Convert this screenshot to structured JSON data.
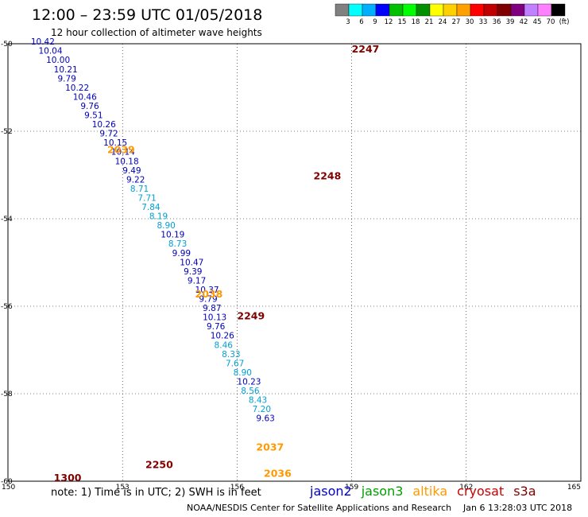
{
  "header": {
    "title": "12:00  –  23:59 UTC 01/05/2018",
    "subtitle": "12 hour collection of altimeter wave heights"
  },
  "legend": {
    "colors": [
      "#808080",
      "#00ffff",
      "#00b0ff",
      "#0000ff",
      "#00c000",
      "#00ff00",
      "#009000",
      "#ffff00",
      "#ffd000",
      "#ffa000",
      "#ff0000",
      "#c00000",
      "#800000",
      "#800080",
      "#c080ff",
      "#ff80ff",
      "#000000"
    ],
    "labels": [
      "3",
      "6",
      "9",
      "12",
      "15",
      "18",
      "21",
      "24",
      "27",
      "30",
      "33",
      "36",
      "39",
      "42",
      "45",
      "70",
      "(ft)"
    ]
  },
  "note": "note:  1) Time is in UTC; 2) SWH is in feet",
  "satellites": [
    {
      "name": "jason2",
      "color": "#0000cc"
    },
    {
      "name": "jason3",
      "color": "#00a000"
    },
    {
      "name": "altika",
      "color": "#ff9900"
    },
    {
      "name": "cryosat",
      "color": "#cc0000"
    },
    {
      "name": "s3a",
      "color": "#800000"
    }
  ],
  "footer": {
    "credit": "NOAA/NESDIS Center for Satellite Applications and Research",
    "timestamp": "Jan  6 13:28:03 UTC 2018"
  },
  "chart_data": {
    "type": "scatter",
    "xlim": [
      150,
      165
    ],
    "ylim": [
      -60,
      -50
    ],
    "xticks": [
      150,
      153,
      156,
      159,
      162,
      165
    ],
    "yticks": [
      -50,
      -52,
      -54,
      -56,
      -58,
      -60
    ],
    "grid": true,
    "time_labels": [
      {
        "text": "2247",
        "x": 159.0,
        "y": -50.2,
        "color": "#800000"
      },
      {
        "text": "2248",
        "x": 158.0,
        "y": -53.1,
        "color": "#800000"
      },
      {
        "text": "2249",
        "x": 156.0,
        "y": -56.3,
        "color": "#800000"
      },
      {
        "text": "2250",
        "x": 153.6,
        "y": -59.7,
        "color": "#800000"
      },
      {
        "text": "1300",
        "x": 151.2,
        "y": -60.0,
        "color": "#800000"
      },
      {
        "text": "2039",
        "x": 152.6,
        "y": -52.5,
        "color": "#ff9900"
      },
      {
        "text": "2038",
        "x": 154.9,
        "y": -55.8,
        "color": "#ff9900"
      },
      {
        "text": "2037",
        "x": 156.5,
        "y": -59.3,
        "color": "#ff9900"
      },
      {
        "text": "2036",
        "x": 156.7,
        "y": -59.9,
        "color": "#ff9900"
      }
    ],
    "series": [
      {
        "name": "altika",
        "points": [
          {
            "x": 150.6,
            "y": -50.02,
            "v": "10.42"
          },
          {
            "x": 150.8,
            "y": -50.23,
            "v": "10.04"
          },
          {
            "x": 151.0,
            "y": -50.44,
            "v": "10.00"
          },
          {
            "x": 151.2,
            "y": -50.65,
            "v": "10.21"
          },
          {
            "x": 151.3,
            "y": -50.86,
            "v": "9.79"
          },
          {
            "x": 151.5,
            "y": -51.07,
            "v": "10.22"
          },
          {
            "x": 151.7,
            "y": -51.28,
            "v": "10.46"
          },
          {
            "x": 151.9,
            "y": -51.49,
            "v": "9.76"
          },
          {
            "x": 152.0,
            "y": -51.7,
            "v": "9.51"
          },
          {
            "x": 152.2,
            "y": -51.91,
            "v": "10.26"
          },
          {
            "x": 152.4,
            "y": -52.12,
            "v": "9.72"
          },
          {
            "x": 152.5,
            "y": -52.33,
            "v": "10.15"
          },
          {
            "x": 152.7,
            "y": -52.54,
            "v": "10.14"
          },
          {
            "x": 152.8,
            "y": -52.75,
            "v": "10.18"
          },
          {
            "x": 153.0,
            "y": -52.96,
            "v": "9.49"
          },
          {
            "x": 153.1,
            "y": -53.17,
            "v": "9.22"
          },
          {
            "x": 153.2,
            "y": -53.38,
            "v": "8.71"
          },
          {
            "x": 153.4,
            "y": -53.59,
            "v": "7.71"
          },
          {
            "x": 153.5,
            "y": -53.8,
            "v": "7.84"
          },
          {
            "x": 153.7,
            "y": -54.01,
            "v": "8.19"
          },
          {
            "x": 153.9,
            "y": -54.22,
            "v": "8.90"
          },
          {
            "x": 154.0,
            "y": -54.43,
            "v": "10.19"
          },
          {
            "x": 154.2,
            "y": -54.64,
            "v": "8.73"
          },
          {
            "x": 154.3,
            "y": -54.85,
            "v": "9.99"
          },
          {
            "x": 154.5,
            "y": -55.06,
            "v": "10.47"
          },
          {
            "x": 154.6,
            "y": -55.27,
            "v": "9.39"
          },
          {
            "x": 154.7,
            "y": -55.48,
            "v": "9.17"
          },
          {
            "x": 154.9,
            "y": -55.69,
            "v": "10.37"
          },
          {
            "x": 155.0,
            "y": -55.9,
            "v": "9.79"
          },
          {
            "x": 155.1,
            "y": -56.11,
            "v": "9.87"
          },
          {
            "x": 155.1,
            "y": -56.32,
            "v": "10.13"
          },
          {
            "x": 155.2,
            "y": -56.53,
            "v": "9.76"
          },
          {
            "x": 155.3,
            "y": -56.74,
            "v": "10.26"
          },
          {
            "x": 155.4,
            "y": -56.95,
            "v": "8.46"
          },
          {
            "x": 155.6,
            "y": -57.16,
            "v": "8.33"
          },
          {
            "x": 155.7,
            "y": -57.37,
            "v": "7.67"
          },
          {
            "x": 155.9,
            "y": -57.58,
            "v": "8.90"
          },
          {
            "x": 156.0,
            "y": -57.79,
            "v": "10.23"
          },
          {
            "x": 156.1,
            "y": -58.0,
            "v": "8.56"
          },
          {
            "x": 156.3,
            "y": -58.21,
            "v": "8.43"
          },
          {
            "x": 156.4,
            "y": -58.42,
            "v": "7.20"
          },
          {
            "x": 156.5,
            "y": -58.63,
            "v": "9.63"
          }
        ]
      }
    ]
  }
}
